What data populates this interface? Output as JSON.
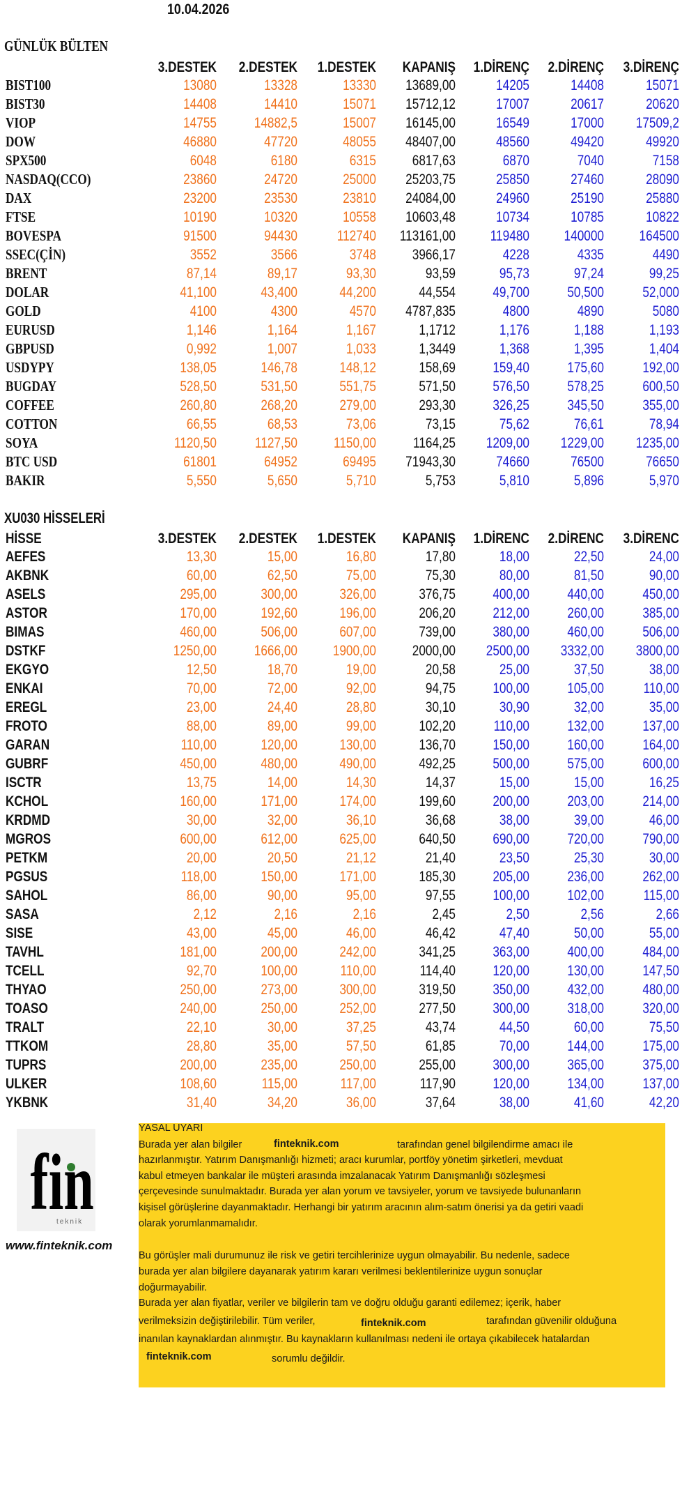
{
  "date": "10.04.2026",
  "bulletin": {
    "title": "GÜNLÜK BÜLTEN",
    "columns": [
      "3.DESTEK",
      "2.DESTEK",
      "1.DESTEK",
      "KAPANIŞ",
      "1.DİRENÇ",
      "2.DİRENÇ",
      "3.DİRENÇ"
    ],
    "rows": [
      {
        "name": "BIST100",
        "values": [
          "13080",
          "13328",
          "13330",
          "13689,00",
          "14205",
          "14408",
          "15071"
        ]
      },
      {
        "name": "BIST30",
        "values": [
          "14408",
          "14410",
          "15071",
          "15712,12",
          "17007",
          "20617",
          "20620"
        ]
      },
      {
        "name": "VIOP",
        "values": [
          "14755",
          "14882,5",
          "15007",
          "16145,00",
          "16549",
          "17000",
          "17509,2"
        ]
      },
      {
        "name": "DOW",
        "values": [
          "46880",
          "47720",
          "48055",
          "48407,00",
          "48560",
          "49420",
          "49920"
        ]
      },
      {
        "name": "SPX500",
        "values": [
          "6048",
          "6180",
          "6315",
          "6817,63",
          "6870",
          "7040",
          "7158"
        ]
      },
      {
        "name": "NASDAQ(CCO)",
        "values": [
          "23860",
          "24720",
          "25000",
          "25203,75",
          "25850",
          "27460",
          "28090"
        ]
      },
      {
        "name": "DAX",
        "values": [
          "23200",
          "23530",
          "23810",
          "24084,00",
          "24960",
          "25190",
          "25880"
        ]
      },
      {
        "name": "FTSE",
        "values": [
          "10190",
          "10320",
          "10558",
          "10603,48",
          "10734",
          "10785",
          "10822"
        ]
      },
      {
        "name": "BOVESPA",
        "values": [
          "91500",
          "94430",
          "112740",
          "113161,00",
          "119480",
          "140000",
          "164500"
        ]
      },
      {
        "name": "SSEC(ÇİN)",
        "values": [
          "3552",
          "3566",
          "3748",
          "3966,17",
          "4228",
          "4335",
          "4490"
        ]
      },
      {
        "name": "BRENT",
        "values": [
          "87,14",
          "89,17",
          "93,30",
          "93,59",
          "95,73",
          "97,24",
          "99,25"
        ]
      },
      {
        "name": "DOLAR",
        "values": [
          "41,100",
          "43,400",
          "44,200",
          "44,554",
          "49,700",
          "50,500",
          "52,000"
        ]
      },
      {
        "name": "GOLD",
        "values": [
          "4100",
          "4300",
          "4570",
          "4787,835",
          "4800",
          "4890",
          "5080"
        ]
      },
      {
        "name": "EURUSD",
        "values": [
          "1,146",
          "1,164",
          "1,167",
          "1,1712",
          "1,176",
          "1,188",
          "1,193"
        ]
      },
      {
        "name": "GBPUSD",
        "values": [
          "0,992",
          "1,007",
          "1,033",
          "1,3449",
          "1,368",
          "1,395",
          "1,404"
        ]
      },
      {
        "name": "USDYPY",
        "values": [
          "138,05",
          "146,78",
          "148,12",
          "158,69",
          "159,40",
          "175,60",
          "192,00"
        ]
      },
      {
        "name": "BUGDAY",
        "values": [
          "528,50",
          "531,50",
          "551,75",
          "571,50",
          "576,50",
          "578,25",
          "600,50"
        ]
      },
      {
        "name": "COFFEE",
        "values": [
          "260,80",
          "268,20",
          "279,00",
          "293,30",
          "326,25",
          "345,50",
          "355,00"
        ]
      },
      {
        "name": "COTTON",
        "values": [
          "66,55",
          "68,53",
          "73,06",
          "73,15",
          "75,62",
          "76,61",
          "78,94"
        ]
      },
      {
        "name": "SOYA",
        "values": [
          "1120,50",
          "1127,50",
          "1150,00",
          "1164,25",
          "1209,00",
          "1229,00",
          "1235,00"
        ]
      },
      {
        "name": "BTC USD",
        "values": [
          "61801",
          "64952",
          "69495",
          "71943,30",
          "74660",
          "76500",
          "76650"
        ]
      },
      {
        "name": "BAKIR",
        "values": [
          "5,550",
          "5,650",
          "5,710",
          "5,753",
          "5,810",
          "5,896",
          "5,970"
        ]
      }
    ]
  },
  "stocks": {
    "title": "XU030 HİSSELERİ",
    "label_header": "HİSSE",
    "columns": [
      "3.DESTEK",
      "2.DESTEK",
      "1.DESTEK",
      "KAPANIŞ",
      "1.DİRENC",
      "2.DİRENC",
      "3.DİRENC"
    ],
    "rows": [
      {
        "name": "AEFES",
        "values": [
          "13,30",
          "15,00",
          "16,80",
          "17,80",
          "18,00",
          "22,50",
          "24,00"
        ]
      },
      {
        "name": "AKBNK",
        "values": [
          "60,00",
          "62,50",
          "75,00",
          "75,30",
          "80,00",
          "81,50",
          "90,00"
        ]
      },
      {
        "name": "ASELS",
        "values": [
          "295,00",
          "300,00",
          "326,00",
          "376,75",
          "400,00",
          "440,00",
          "450,00"
        ]
      },
      {
        "name": "ASTOR",
        "values": [
          "170,00",
          "192,60",
          "196,00",
          "206,20",
          "212,00",
          "260,00",
          "385,00"
        ]
      },
      {
        "name": "BIMAS",
        "values": [
          "460,00",
          "506,00",
          "607,00",
          "739,00",
          "380,00",
          "460,00",
          "506,00"
        ]
      },
      {
        "name": "DSTKF",
        "values": [
          "1250,00",
          "1666,00",
          "1900,00",
          "2000,00",
          "2500,00",
          "3332,00",
          "3800,00"
        ]
      },
      {
        "name": "EKGYO",
        "values": [
          "12,50",
          "18,70",
          "19,00",
          "20,58",
          "25,00",
          "37,50",
          "38,00"
        ]
      },
      {
        "name": "ENKAI",
        "values": [
          "70,00",
          "72,00",
          "92,00",
          "94,75",
          "100,00",
          "105,00",
          "110,00"
        ]
      },
      {
        "name": "EREGL",
        "values": [
          "23,00",
          "24,40",
          "28,80",
          "30,10",
          "30,90",
          "32,00",
          "35,00"
        ]
      },
      {
        "name": "FROTO",
        "values": [
          "88,00",
          "89,00",
          "99,00",
          "102,20",
          "110,00",
          "132,00",
          "137,00"
        ]
      },
      {
        "name": "GARAN",
        "values": [
          "110,00",
          "120,00",
          "130,00",
          "136,70",
          "150,00",
          "160,00",
          "164,00"
        ]
      },
      {
        "name": "GUBRF",
        "values": [
          "450,00",
          "480,00",
          "490,00",
          "492,25",
          "500,00",
          "575,00",
          "600,00"
        ]
      },
      {
        "name": "ISCTR",
        "values": [
          "13,75",
          "14,00",
          "14,30",
          "14,37",
          "15,00",
          "15,00",
          "16,25"
        ]
      },
      {
        "name": "KCHOL",
        "values": [
          "160,00",
          "171,00",
          "174,00",
          "199,60",
          "200,00",
          "203,00",
          "214,00"
        ]
      },
      {
        "name": "KRDMD",
        "values": [
          "30,00",
          "32,00",
          "36,10",
          "36,68",
          "38,00",
          "39,00",
          "46,00"
        ]
      },
      {
        "name": "MGROS",
        "values": [
          "600,00",
          "612,00",
          "625,00",
          "640,50",
          "690,00",
          "720,00",
          "790,00"
        ]
      },
      {
        "name": "PETKM",
        "values": [
          "20,00",
          "20,50",
          "21,12",
          "21,40",
          "23,50",
          "25,30",
          "30,00"
        ]
      },
      {
        "name": "PGSUS",
        "values": [
          "118,00",
          "150,00",
          "171,00",
          "185,30",
          "205,00",
          "236,00",
          "262,00"
        ]
      },
      {
        "name": "SAHOL",
        "values": [
          "86,00",
          "90,00",
          "95,00",
          "97,55",
          "100,00",
          "102,00",
          "115,00"
        ]
      },
      {
        "name": "SASA",
        "values": [
          "2,12",
          "2,16",
          "2,16",
          "2,45",
          "2,50",
          "2,56",
          "2,66"
        ]
      },
      {
        "name": "SISE",
        "values": [
          "43,00",
          "45,00",
          "46,00",
          "46,42",
          "47,40",
          "50,00",
          "55,00"
        ]
      },
      {
        "name": "TAVHL",
        "values": [
          "181,00",
          "200,00",
          "242,00",
          "341,25",
          "363,00",
          "400,00",
          "484,00"
        ]
      },
      {
        "name": "TCELL",
        "values": [
          "92,70",
          "100,00",
          "110,00",
          "114,40",
          "120,00",
          "130,00",
          "147,50"
        ]
      },
      {
        "name": "THYAO",
        "values": [
          "250,00",
          "273,00",
          "300,00",
          "319,50",
          "350,00",
          "432,00",
          "480,00"
        ]
      },
      {
        "name": "TOASO",
        "values": [
          "240,00",
          "250,00",
          "252,00",
          "277,50",
          "300,00",
          "318,00",
          "320,00"
        ]
      },
      {
        "name": "TRALT",
        "values": [
          "22,10",
          "30,00",
          "37,25",
          "43,74",
          "44,50",
          "60,00",
          "75,50"
        ]
      },
      {
        "name": "TTKOM",
        "values": [
          "28,80",
          "35,00",
          "57,50",
          "61,85",
          "70,00",
          "144,00",
          "175,00"
        ]
      },
      {
        "name": "TUPRS",
        "values": [
          "200,00",
          "235,00",
          "250,00",
          "255,00",
          "300,00",
          "365,00",
          "375,00"
        ]
      },
      {
        "name": "ULKER",
        "values": [
          "108,60",
          "115,00",
          "117,00",
          "117,90",
          "120,00",
          "134,00",
          "137,00"
        ]
      },
      {
        "name": "YKBNK",
        "values": [
          "31,40",
          "34,20",
          "36,00",
          "37,64",
          "38,00",
          "41,60",
          "42,20"
        ]
      }
    ]
  },
  "logo": {
    "mark": "fin",
    "sub": "teknik",
    "website": "www.finteknik.com"
  },
  "disclaimer": {
    "title": "YASAL UYARI",
    "brand": "finteknik.com",
    "l1a": "Burada yer alan bilgiler",
    "l1b": "tarafından genel bilgilendirme amacı ile",
    "l2": "hazırlanmıştır. Yatırım Danışmanlığı hizmeti; aracı kurumlar, portföy yönetim şirketleri, mevduat",
    "l3": "kabul etmeyen bankalar ile müşteri arasında imzalanacak Yatırım Danışmanlığı sözleşmesi",
    "l4": "çerçevesinde sunulmaktadır. Burada yer alan yorum ve tavsiyeler, yorum ve tavsiyede bulunanların",
    "l5": "kişisel görüşlerine dayanmaktadır. Herhangi bir yatırım aracının alım-satım önerisi ya da getiri vaadi",
    "l6": "olarak yorumlanmamalıdır.",
    "l7": "Bu görüşler mali durumunuz ile risk ve getiri tercihlerinize uygun olmayabilir. Bu nedenle, sadece",
    "l8": "burada yer alan bilgilere dayanarak yatırım kararı verilmesi beklentilerinize uygun sonuçlar",
    "l9": "doğurmayabilir.",
    "l10": "Burada yer alan fiyatlar, veriler ve bilgilerin tam ve doğru olduğu garanti edilemez; içerik, haber",
    "l11a": "verilmeksizin değiştirilebilir. Tüm veriler,",
    "l11b": "tarafından güvenilir olduğuna",
    "l12": "inanılan kaynaklardan alınmıştır. Bu kaynakların kullanılması nedeni ile ortaya çıkabilecek hatalardan",
    "l13b": "sorumlu değildir."
  },
  "colors": {
    "support": "#F0731E",
    "resistance": "#1E1ED2",
    "close": "#111111",
    "disclaimer_bg": "#FCD21F"
  }
}
